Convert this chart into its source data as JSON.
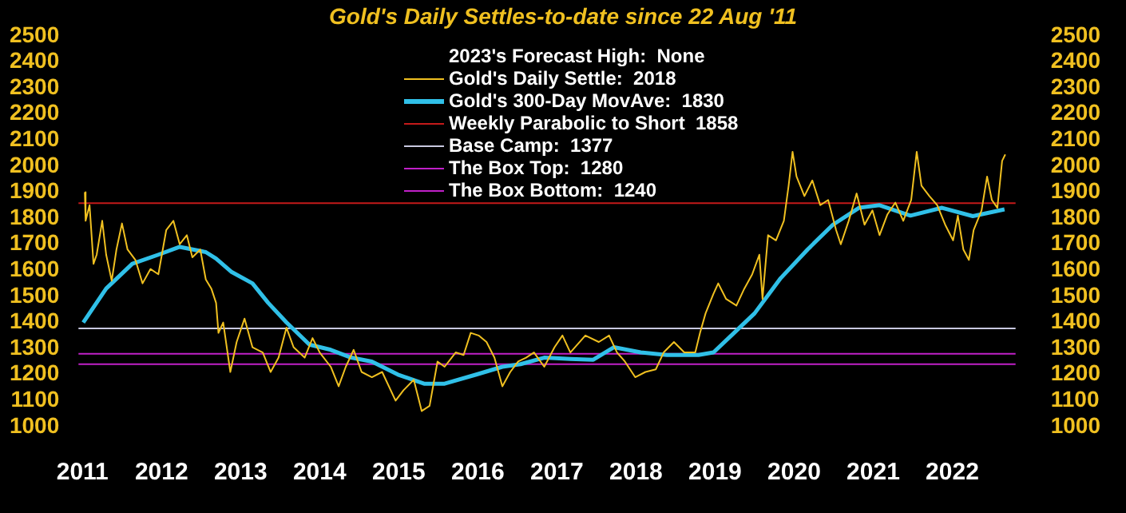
{
  "chart_data": {
    "type": "line",
    "title": "Gold's Daily Settles-to-date since 22 Aug '11",
    "legend_title": "2023's Forecast High:  None",
    "legend": "top",
    "grid": false,
    "marker": "none",
    "line_style": "solid",
    "xlim": [
      2010.95,
      2022.8
    ],
    "xticks": [
      2011,
      2012,
      2013,
      2014,
      2015,
      2016,
      2017,
      2018,
      2019,
      2020,
      2021,
      2022
    ],
    "ylim": [
      1000,
      2500
    ],
    "yticks": [
      1000,
      1100,
      1200,
      1300,
      1400,
      1500,
      1600,
      1700,
      1800,
      1900,
      2000,
      2100,
      2200,
      2300,
      2400,
      2500
    ],
    "y2lim": [
      1000,
      2500
    ],
    "y2ticks": [
      1000,
      1100,
      1200,
      1300,
      1400,
      1500,
      1600,
      1700,
      1800,
      1900,
      2000,
      2100,
      2200,
      2300,
      2400,
      2500
    ],
    "series": [
      {
        "name": "Gold's Daily Settle:  2018",
        "color": "#f0c020",
        "x": [
          2011.03,
          2011.04,
          2011.09,
          2011.14,
          2011.18,
          2011.25,
          2011.3,
          2011.37,
          2011.43,
          2011.5,
          2011.57,
          2011.67,
          2011.76,
          2011.86,
          2011.96,
          2012.06,
          2012.15,
          2012.23,
          2012.32,
          2012.39,
          2012.49,
          2012.56,
          2012.63,
          2012.69,
          2012.72,
          2012.78,
          2012.87,
          2012.95,
          2013.05,
          2013.15,
          2013.28,
          2013.38,
          2013.48,
          2013.58,
          2013.67,
          2013.81,
          2013.91,
          2014.0,
          2014.14,
          2014.24,
          2014.33,
          2014.43,
          2014.53,
          2014.66,
          2014.79,
          2014.96,
          2015.06,
          2015.19,
          2015.29,
          2015.39,
          2015.49,
          2015.58,
          2015.72,
          2015.82,
          2015.91,
          2016.01,
          2016.11,
          2016.21,
          2016.31,
          2016.41,
          2016.51,
          2016.61,
          2016.71,
          2016.84,
          2016.97,
          2017.07,
          2017.17,
          2017.36,
          2017.53,
          2017.66,
          2017.76,
          2017.86,
          2017.99,
          2018.12,
          2018.25,
          2018.35,
          2018.48,
          2018.61,
          2018.75,
          2018.81,
          2018.88,
          2018.98,
          2019.04,
          2019.14,
          2019.27,
          2019.37,
          2019.47,
          2019.56,
          2019.6,
          2019.67,
          2019.77,
          2019.87,
          2019.93,
          2019.98,
          2020.03,
          2020.13,
          2020.23,
          2020.33,
          2020.43,
          2020.53,
          2020.59,
          2020.69,
          2020.79,
          2020.89,
          2020.99,
          2021.08,
          2021.18,
          2021.28,
          2021.38,
          2021.48,
          2021.55,
          2021.61,
          2021.71,
          2021.81,
          2021.91,
          2022.01,
          2022.07,
          2022.14,
          2022.21,
          2022.27,
          2022.37,
          2022.44,
          2022.5,
          2022.57,
          2022.63,
          2022.67
        ],
        "values": [
          1900,
          1790,
          1850,
          1625,
          1660,
          1790,
          1660,
          1560,
          1680,
          1780,
          1680,
          1640,
          1550,
          1605,
          1585,
          1755,
          1790,
          1700,
          1735,
          1650,
          1680,
          1565,
          1530,
          1475,
          1360,
          1400,
          1210,
          1325,
          1415,
          1305,
          1285,
          1210,
          1265,
          1380,
          1305,
          1265,
          1340,
          1285,
          1230,
          1155,
          1230,
          1295,
          1210,
          1190,
          1210,
          1100,
          1140,
          1180,
          1060,
          1080,
          1250,
          1230,
          1285,
          1275,
          1360,
          1350,
          1325,
          1265,
          1155,
          1210,
          1250,
          1265,
          1285,
          1230,
          1305,
          1350,
          1285,
          1350,
          1325,
          1350,
          1285,
          1250,
          1190,
          1210,
          1220,
          1285,
          1325,
          1285,
          1285,
          1360,
          1435,
          1510,
          1550,
          1490,
          1465,
          1530,
          1585,
          1660,
          1490,
          1735,
          1715,
          1790,
          1925,
          2055,
          1960,
          1885,
          1945,
          1850,
          1870,
          1755,
          1700,
          1790,
          1895,
          1775,
          1830,
          1735,
          1815,
          1860,
          1790,
          1870,
          2055,
          1925,
          1885,
          1850,
          1775,
          1715,
          1810,
          1680,
          1640,
          1755,
          1830,
          1960,
          1870,
          1840,
          2020,
          2045
        ]
      },
      {
        "name": "Gold's 300-Day MovAve:  1830",
        "color": "#30c0e8",
        "x": [
          2011.01,
          2011.3,
          2011.63,
          2011.96,
          2012.23,
          2012.56,
          2012.69,
          2012.88,
          2013.15,
          2013.35,
          2013.58,
          2013.87,
          2014.14,
          2014.4,
          2014.66,
          2014.99,
          2015.32,
          2015.58,
          2015.98,
          2016.31,
          2016.54,
          2016.84,
          2017.17,
          2017.46,
          2017.72,
          2018.06,
          2018.39,
          2018.79,
          2018.98,
          2019.24,
          2019.5,
          2019.83,
          2020.17,
          2020.49,
          2020.82,
          2021.08,
          2021.47,
          2021.87,
          2022.26,
          2022.66
        ],
        "values": [
          1400,
          1530,
          1625,
          1660,
          1690,
          1670,
          1645,
          1595,
          1550,
          1475,
          1400,
          1315,
          1295,
          1265,
          1250,
          1200,
          1165,
          1165,
          1200,
          1230,
          1240,
          1265,
          1260,
          1257,
          1305,
          1285,
          1275,
          1275,
          1285,
          1360,
          1435,
          1570,
          1680,
          1775,
          1840,
          1850,
          1810,
          1840,
          1808,
          1834
        ]
      }
    ],
    "ref_lines": [
      {
        "axis": "y",
        "value": 1858,
        "label": "Weekly Parabolic to Short  1858",
        "color": "#c41a1a"
      },
      {
        "axis": "y",
        "value": 1377,
        "label": "Base Camp:  1377",
        "color": "#c8c8e0"
      },
      {
        "axis": "y",
        "value": 1280,
        "label": "The Box Top:  1280",
        "color": "#c020c8"
      },
      {
        "axis": "y",
        "value": 1240,
        "label": "The Box Bottom:  1240",
        "color": "#c020c8"
      }
    ]
  }
}
